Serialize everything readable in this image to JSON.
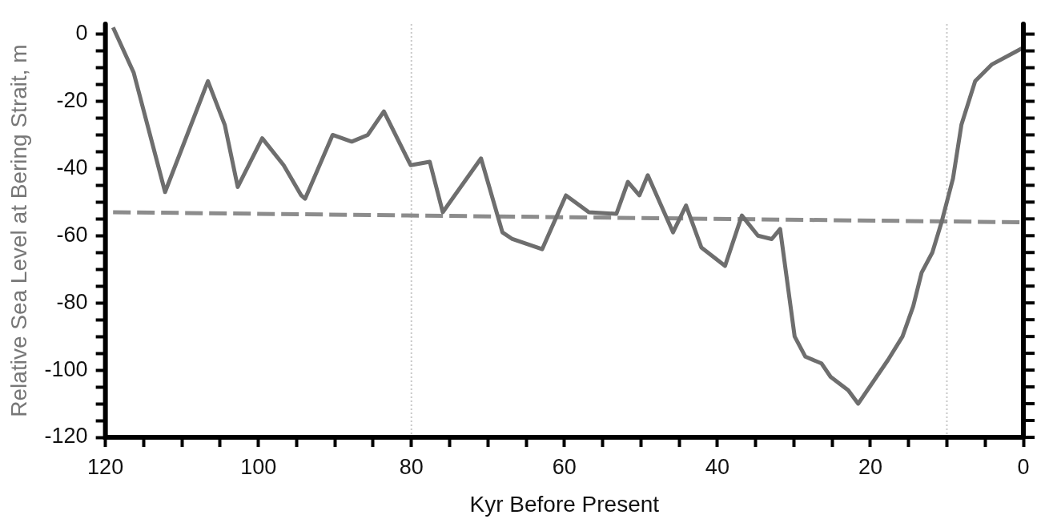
{
  "chart_data": {
    "type": "line",
    "xlabel": "Kyr Before Present",
    "ylabel": "Relative Sea Level at Bering Strait, m",
    "xlim": [
      120,
      0
    ],
    "ylim": [
      -120,
      3
    ],
    "xticks": [
      120,
      {
        "value": 115,
        "label": null
      },
      {
        "value": 110,
        "label": null
      },
      {
        "value": 105,
        "label": null
      },
      100,
      {
        "value": 95,
        "label": null
      },
      {
        "value": 90,
        "label": null
      },
      {
        "value": 85,
        "label": null
      },
      80,
      {
        "value": 75,
        "label": null
      },
      {
        "value": 70,
        "label": null
      },
      {
        "value": 65,
        "label": null
      },
      60,
      {
        "value": 55,
        "label": null
      },
      {
        "value": 50,
        "label": null
      },
      {
        "value": 45,
        "label": null
      },
      40,
      {
        "value": 35,
        "label": null
      },
      {
        "value": 30,
        "label": null
      },
      {
        "value": 25,
        "label": null
      },
      20,
      {
        "value": 15,
        "label": null
      },
      {
        "value": 10,
        "label": null
      },
      {
        "value": 5,
        "label": null
      },
      0
    ],
    "yticks": [
      0,
      {
        "value": -5,
        "label": null
      },
      {
        "value": -10,
        "label": null
      },
      {
        "value": -15,
        "label": null
      },
      -20,
      {
        "value": -25,
        "label": null
      },
      {
        "value": -30,
        "label": null
      },
      {
        "value": -35,
        "label": null
      },
      -40,
      {
        "value": -45,
        "label": null
      },
      {
        "value": -50,
        "label": null
      },
      {
        "value": -55,
        "label": null
      },
      -60,
      {
        "value": -65,
        "label": null
      },
      {
        "value": -70,
        "label": null
      },
      {
        "value": -75,
        "label": null
      },
      -80,
      {
        "value": -85,
        "label": null
      },
      {
        "value": -90,
        "label": null
      },
      {
        "value": -95,
        "label": null
      },
      -100,
      {
        "value": -105,
        "label": null
      },
      {
        "value": -110,
        "label": null
      },
      {
        "value": -115,
        "label": null
      },
      -120
    ],
    "grid": false,
    "legend": false,
    "marker": "none",
    "ref_lines": [
      {
        "axis": "x",
        "value": 80,
        "color": "#c8c8c8",
        "line_style": "dotted"
      },
      {
        "axis": "x",
        "value": 10,
        "color": "#c8c8c8",
        "line_style": "dotted"
      }
    ],
    "series": [
      {
        "color": "#6e6e6e",
        "x": [
          119,
          116.3,
          112.2,
          106.6,
          104.4,
          102.7,
          99.5,
          96.7,
          94.4,
          93.9,
          90.3,
          87.8,
          85.7,
          83.6,
          80.1,
          77.6,
          75.9,
          70.9,
          68.1,
          66.8,
          62.9,
          59.8,
          56.8,
          53.2,
          51.7,
          50.2,
          49.1,
          45.8,
          44.1,
          42.1,
          39.0,
          36.8,
          34.7,
          32.9,
          31.8,
          29.9,
          28.5,
          26.4,
          25.2,
          22.9,
          21.6,
          17.7,
          15.8,
          14.4,
          13.3,
          11.9,
          10.7,
          9.2,
          8.1,
          6.3,
          4.1,
          0
        ],
        "values": [
          2,
          -11.5,
          -47,
          -14,
          -27,
          -45.5,
          -31,
          -39,
          -48,
          -49,
          -30,
          -32,
          -30,
          -23,
          -39,
          -38,
          -53,
          -37,
          -59,
          -61,
          -64,
          -48,
          -53,
          -53.5,
          -44,
          -48,
          -42,
          -59,
          -51,
          -63.5,
          -69,
          -54,
          -60,
          -61,
          -58,
          -90,
          -96,
          -98,
          -102,
          -106,
          -110,
          -97,
          -90,
          -81,
          -71,
          -65,
          -56,
          -43,
          -27,
          -14,
          -9,
          -4
        ]
      },
      {
        "color": "#8c8c8c",
        "line_style": "dashed",
        "x": [
          119,
          0
        ],
        "values": [
          -53,
          -56
        ]
      }
    ]
  }
}
